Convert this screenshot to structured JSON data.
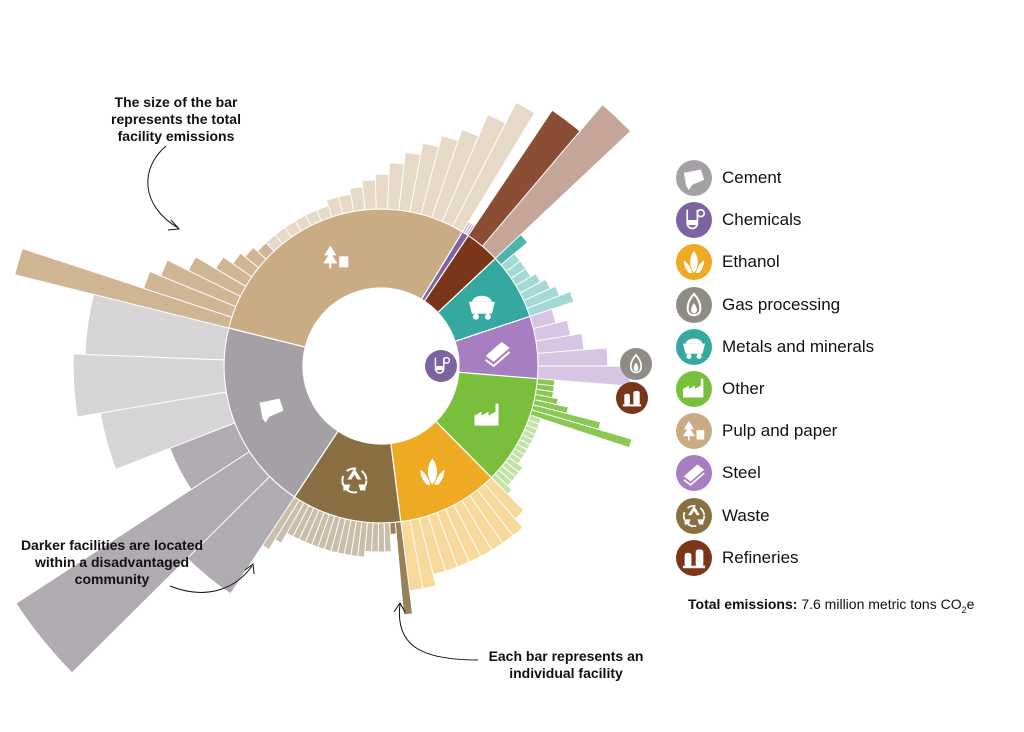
{
  "chart_data": {
    "type": "sunburst",
    "total_label": "Total emissions:",
    "total_value": "7.6 million metric tons CO",
    "total_sub": "2",
    "total_suffix": "e",
    "legend": [
      {
        "name": "Cement",
        "color": "#a5a0a5",
        "icon": "cement-icon"
      },
      {
        "name": "Chemicals",
        "color": "#7d64a0",
        "icon": "chemicals-icon"
      },
      {
        "name": "Ethanol",
        "color": "#eeaa22",
        "icon": "corn-icon"
      },
      {
        "name": "Gas processing",
        "color": "#8f8c85",
        "icon": "flame-icon"
      },
      {
        "name": "Metals and minerals",
        "color": "#35a99f",
        "icon": "mine-cart-icon"
      },
      {
        "name": "Other",
        "color": "#7abf3c",
        "icon": "factory-icon"
      },
      {
        "name": "Pulp and paper",
        "color": "#c9ab84",
        "icon": "tree-icon"
      },
      {
        "name": "Steel",
        "color": "#a77ec0",
        "icon": "steel-beam-icon"
      },
      {
        "name": "Waste",
        "color": "#8a6f42",
        "icon": "recycle-icon"
      },
      {
        "name": "Refineries",
        "color": "#7b361a",
        "icon": "refinery-icon"
      }
    ],
    "sectors": [
      {
        "name": "Pulp and paper",
        "share": 0.298,
        "facilities_dark": [
          3.8,
          1.6,
          1.4,
          1.0,
          0.6,
          0.4,
          0.3,
          0.2
        ],
        "facilities_light": [
          0.2,
          0.2,
          0.2,
          0.2,
          0.2,
          0.2,
          0.3,
          0.3,
          0.4,
          0.5,
          0.6,
          0.8,
          1.0,
          1.2,
          1.4,
          1.6,
          2.0,
          2.4
        ]
      },
      {
        "name": "Chemicals",
        "share": 0.007,
        "facilities_dark": [],
        "facilities_light": [
          0.2,
          0.2,
          0.2
        ]
      },
      {
        "name": "Refineries",
        "share": 0.036,
        "facilities_dark": [
          2.6
        ],
        "facilities_light": [
          3.2
        ]
      },
      {
        "name": "Metals and minerals",
        "share": 0.069,
        "facilities_dark": [
          0.6
        ],
        "facilities_light": [
          0.3,
          0.3,
          0.3,
          0.4,
          0.5,
          0.6,
          0.8
        ]
      },
      {
        "name": "Steel",
        "share": 0.064,
        "facilities_dark": [],
        "facilities_light": [
          0.4,
          0.6,
          0.8,
          1.2,
          1.6
        ]
      },
      {
        "name": "Other",
        "share": 0.113,
        "facilities_dark": [
          0.3,
          0.3,
          0.3,
          0.4,
          0.6,
          1.2,
          1.8
        ],
        "facilities_light": [
          0.2,
          0.2,
          0.2,
          0.2,
          0.2,
          0.2,
          0.2,
          0.2,
          0.2,
          0.3,
          0.3,
          0.3,
          0.3,
          0.4
        ]
      },
      {
        "name": "Ethanol",
        "share": 0.104,
        "facilities_dark": [],
        "facilities_light": [
          0.8,
          1.0,
          1.0,
          1.0,
          1.0,
          1.0,
          1.0,
          1.0,
          1.0,
          1.2,
          1.2
        ]
      },
      {
        "name": "Waste",
        "share": 0.113,
        "facilities_dark": [
          1.6,
          0.2
        ],
        "facilities_light": [
          0.5,
          0.5,
          0.5,
          0.5,
          0.6,
          0.6,
          0.6,
          0.6,
          0.6,
          0.6,
          0.6,
          0.6,
          0.6,
          0.6,
          0.6,
          0.6,
          0.8,
          1.0
        ]
      },
      {
        "name": "Cement",
        "share": 0.196,
        "facilities_dark": [
          2.0,
          4.8,
          1.2
        ],
        "facilities_light": [
          2.2,
          2.6,
          2.4
        ]
      }
    ]
  },
  "annotations": {
    "bar_size": [
      "The size of the bar",
      "represents the total",
      "facility emissions"
    ],
    "darker": [
      "Darker facilities are located",
      "within a disadvantaged",
      "community"
    ],
    "each_bar": [
      "Each bar represents an",
      "individual facility"
    ]
  }
}
